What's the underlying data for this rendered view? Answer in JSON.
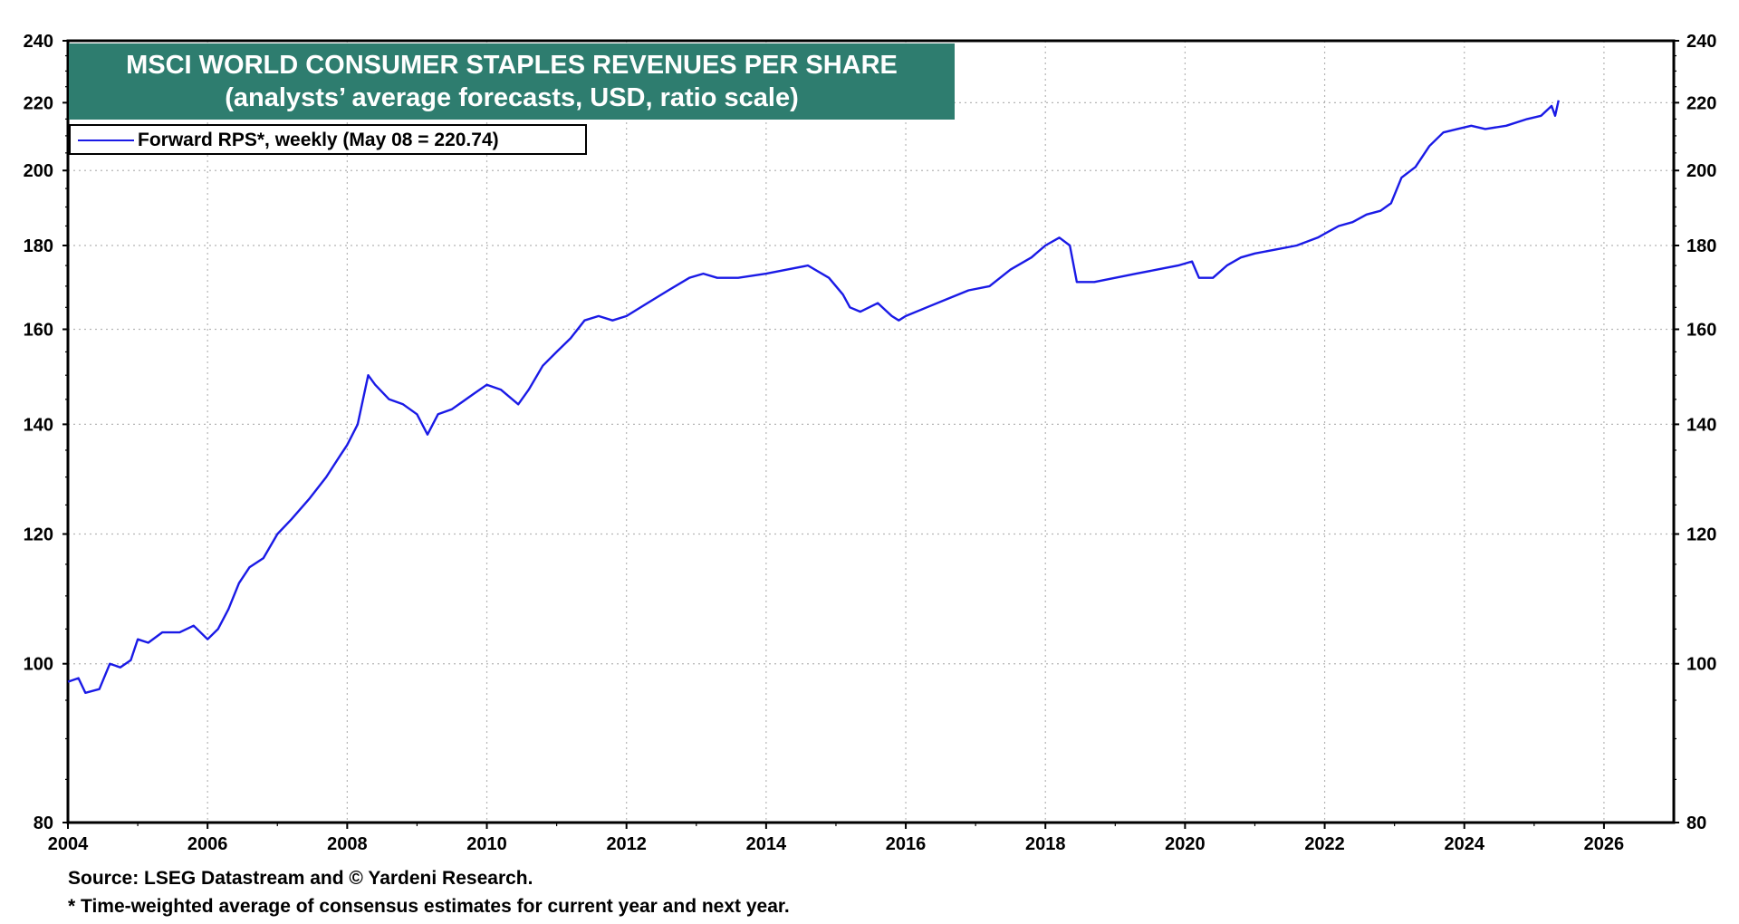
{
  "chart_data": {
    "type": "line",
    "title": "MSCI WORLD CONSUMER STAPLES REVENUES PER SHARE",
    "subtitle": "(analysts’ average forecasts, USD, ratio scale)",
    "yscale": "log",
    "ylim": [
      80,
      240
    ],
    "xlim": [
      2004,
      2027
    ],
    "y_ticks": [
      80,
      100,
      120,
      140,
      160,
      180,
      200,
      220,
      240
    ],
    "y_tick_labels": [
      "80",
      "100",
      "120",
      "140",
      "160",
      "180",
      "200",
      "220",
      "240"
    ],
    "x_ticks": [
      2004,
      2006,
      2008,
      2010,
      2012,
      2014,
      2016,
      2018,
      2020,
      2022,
      2024,
      2026
    ],
    "x_tick_labels": [
      "2004",
      "2006",
      "2008",
      "2010",
      "2012",
      "2014",
      "2016",
      "2018",
      "2020",
      "2022",
      "2024",
      "2026"
    ],
    "grid": true,
    "legend_position": "top-left",
    "series": [
      {
        "name": "Forward RPS*, weekly (May 08 = 220.74)",
        "color": "#1a1ae6",
        "x": [
          2004.0,
          2004.15,
          2004.25,
          2004.45,
          2004.6,
          2004.75,
          2004.9,
          2005.0,
          2005.15,
          2005.35,
          2005.6,
          2005.8,
          2006.0,
          2006.15,
          2006.3,
          2006.45,
          2006.6,
          2006.8,
          2007.0,
          2007.2,
          2007.45,
          2007.7,
          2007.9,
          2008.0,
          2008.15,
          2008.3,
          2008.4,
          2008.6,
          2008.8,
          2009.0,
          2009.15,
          2009.3,
          2009.5,
          2009.8,
          2010.0,
          2010.2,
          2010.45,
          2010.6,
          2010.8,
          2011.0,
          2011.2,
          2011.4,
          2011.6,
          2011.8,
          2012.0,
          2012.3,
          2012.6,
          2012.9,
          2013.1,
          2013.3,
          2013.6,
          2014.0,
          2014.3,
          2014.6,
          2014.9,
          2015.1,
          2015.2,
          2015.35,
          2015.6,
          2015.8,
          2015.9,
          2016.0,
          2016.3,
          2016.6,
          2016.9,
          2017.2,
          2017.5,
          2017.8,
          2018.0,
          2018.2,
          2018.35,
          2018.45,
          2018.7,
          2019.0,
          2019.3,
          2019.6,
          2019.9,
          2020.1,
          2020.2,
          2020.4,
          2020.6,
          2020.8,
          2021.0,
          2021.3,
          2021.6,
          2021.9,
          2022.0,
          2022.2,
          2022.4,
          2022.6,
          2022.8,
          2022.95,
          2023.1,
          2023.3,
          2023.5,
          2023.7,
          2023.9,
          2024.1,
          2024.3,
          2024.6,
          2024.9,
          2025.1,
          2025.25,
          2025.3,
          2025.35
        ],
        "values": [
          97.5,
          98,
          96,
          96.5,
          100,
          99.5,
          100.5,
          103.5,
          103,
          104.5,
          104.5,
          105.5,
          103.5,
          105,
          108,
          112,
          114.5,
          116,
          120,
          122.5,
          126,
          130,
          134,
          136,
          140,
          150,
          148,
          145,
          144,
          142,
          138,
          142,
          143,
          146,
          148,
          147,
          144,
          147,
          152,
          155,
          158,
          162,
          163,
          162,
          163,
          166,
          169,
          172,
          173,
          172,
          172,
          173,
          174,
          175,
          172,
          168,
          165,
          164,
          166,
          163,
          162,
          163,
          165,
          167,
          169,
          170,
          174,
          177,
          180,
          182,
          180,
          171,
          171,
          172,
          173,
          174,
          175,
          176,
          172,
          172,
          175,
          177,
          178,
          179,
          180,
          182,
          183,
          185,
          186,
          188,
          189,
          191,
          198,
          201,
          207,
          211,
          212,
          213,
          212,
          213,
          215,
          216,
          219,
          216,
          220.74
        ]
      }
    ]
  },
  "footnotes": {
    "source": "Source: LSEG Datastream and © Yardeni Research.",
    "asterisk": "* Time-weighted average of consensus estimates for current year and next year."
  }
}
